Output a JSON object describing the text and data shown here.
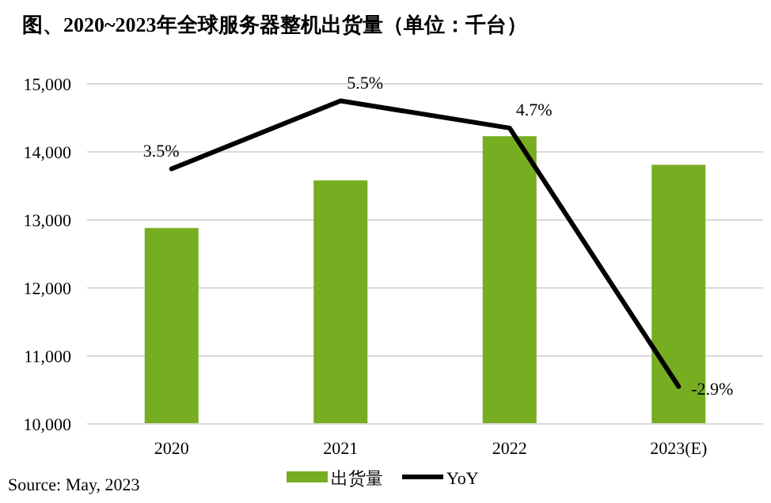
{
  "chart_data": {
    "type": "bar",
    "title": "图、2020~2023年全球服务器整机出货量（单位：千台）",
    "categories": [
      "2020",
      "2021",
      "2022",
      "2023(E)"
    ],
    "series": [
      {
        "name": "出货量",
        "color": "#76ad21",
        "values": [
          12880,
          13580,
          14230,
          13810
        ]
      },
      {
        "name": "YoY",
        "type": "line",
        "axis": "y2",
        "color": "#000000",
        "values": [
          3.5,
          5.5,
          4.7,
          -2.9
        ],
        "value_labels": [
          "3.5%",
          "5.5%",
          "4.7%",
          "-2.9%"
        ]
      }
    ],
    "ylim": [
      10000,
      15000
    ],
    "yticks": [
      {
        "value": 10000,
        "label": "10,000"
      },
      {
        "value": 11000,
        "label": "11,000"
      },
      {
        "value": 12000,
        "label": "12,000"
      },
      {
        "value": 13000,
        "label": "13,000"
      },
      {
        "value": 14000,
        "label": "14,000"
      },
      {
        "value": 15000,
        "label": "15,000"
      }
    ],
    "y2lim": [
      -4,
      6
    ],
    "grid": "y",
    "legend": "bottom",
    "annotations": [
      "Source: May, 2023"
    ]
  }
}
